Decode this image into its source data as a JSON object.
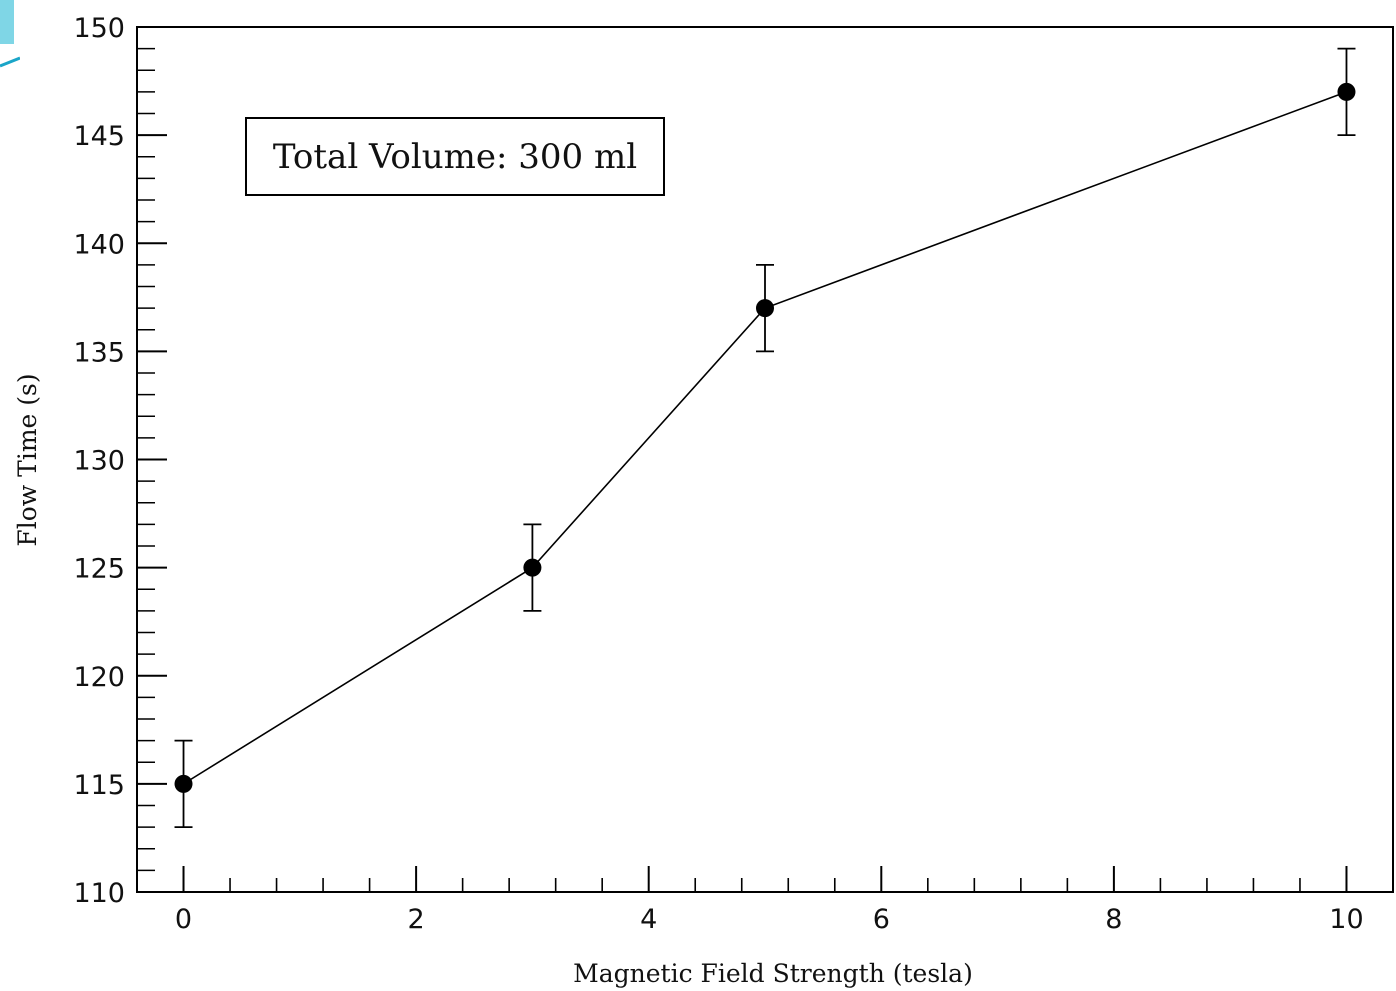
{
  "chart_data": {
    "type": "line",
    "x": [
      0,
      3,
      5,
      10
    ],
    "series": [
      {
        "values": [
          115,
          125,
          137,
          147
        ],
        "errors": [
          2,
          2,
          2,
          2
        ],
        "marker": "filled-circle",
        "color": "#000000"
      }
    ],
    "xlabel": "Magnetic Field Strength (tesla)",
    "ylabel": "Flow Time (s)",
    "xlim": [
      -0.4,
      10.4
    ],
    "ylim": [
      110,
      150
    ],
    "xticks": [
      0,
      2,
      4,
      6,
      8,
      10
    ],
    "xtick_labels": [
      "0",
      "2",
      "4",
      "6",
      "8",
      "10"
    ],
    "yticks": [
      110,
      115,
      120,
      125,
      130,
      135,
      140,
      145,
      150
    ],
    "ytick_labels": [
      "110",
      "115",
      "120",
      "125",
      "130",
      "135",
      "140",
      "145",
      "150"
    ],
    "annotation": "Total Volume: 300 ml",
    "annotation_placement": "top-left",
    "grid": false
  }
}
